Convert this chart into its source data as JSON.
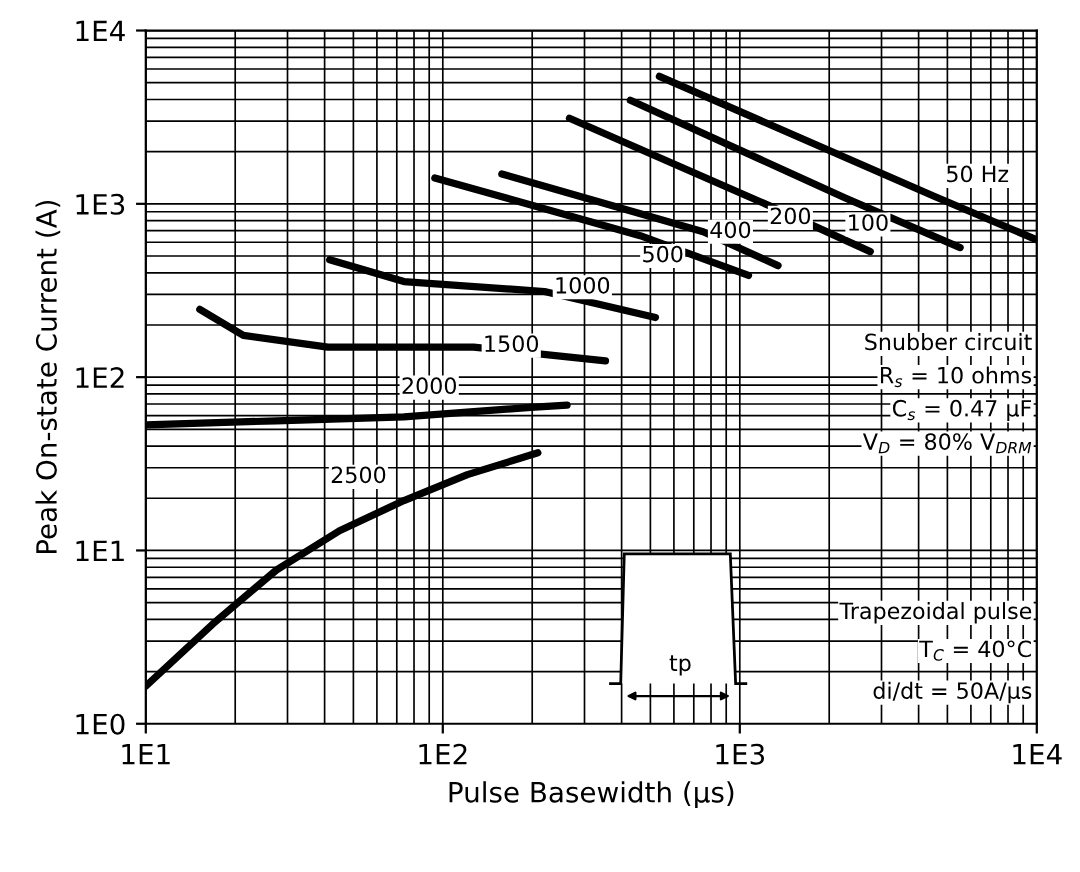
{
  "chart_data": {
    "type": "line",
    "xlabel": "Pulse Basewidth (µs)",
    "ylabel": "Peak On-state Current (A)",
    "log": "xy",
    "grid": true,
    "marker": "none",
    "line_style": "solid",
    "xlim": [
      10,
      10000
    ],
    "ylim": [
      1,
      10000
    ],
    "xticks": [
      {
        "value": 10,
        "label": "1E1"
      },
      {
        "value": 100,
        "label": "1E2"
      },
      {
        "value": 1000,
        "label": "1E3"
      },
      {
        "value": 10000,
        "label": "1E4"
      }
    ],
    "yticks": [
      {
        "value": 1,
        "label": "1E0"
      },
      {
        "value": 10,
        "label": "1E1"
      },
      {
        "value": 100,
        "label": "1E2"
      },
      {
        "value": 1000,
        "label": "1E3"
      },
      {
        "value": 10000,
        "label": "1E4"
      }
    ],
    "series": [
      {
        "color": "#000000",
        "x": [
          536,
          4490,
          10000
        ],
        "values": [
          5440,
          1110,
          620
        ]
      },
      {
        "color": "#000000",
        "x": [
          428,
          2265,
          5520
        ],
        "values": [
          3960,
          1080,
          559
        ]
      },
      {
        "color": "#000000",
        "x": [
          267,
          1306,
          2750
        ],
        "values": [
          3120,
          948,
          530
        ]
      },
      {
        "color": "#000000",
        "x": [
          158,
          753,
          1345
        ],
        "values": [
          1487,
          690,
          440
        ]
      },
      {
        "color": "#000000",
        "x": [
          94,
          462,
          1070
        ],
        "values": [
          1410,
          655,
          386
        ]
      },
      {
        "color": "#000000",
        "x": [
          41.6,
          74,
          220,
          520
        ],
        "values": [
          476,
          356,
          312,
          221
        ]
      },
      {
        "color": "#000000",
        "x": [
          15.2,
          21.3,
          41,
          127,
          353
        ],
        "values": [
          246,
          174,
          149,
          149,
          124
        ]
      },
      {
        "color": "#000000",
        "x": [
          10,
          27.5,
          74,
          198,
          262
        ],
        "values": [
          53,
          56,
          59,
          67,
          69
        ]
      },
      {
        "color": "#000000",
        "x": [
          10,
          16.8,
          27.5,
          44.9,
          74,
          121,
          209
        ],
        "values": [
          1.65,
          3.76,
          7.7,
          13,
          19.4,
          27.4,
          36.6
        ]
      }
    ],
    "annotations": [
      {
        "text": "50 Hz",
        "x": 6300,
        "y": 1450
      },
      {
        "text": "100",
        "x": 2700,
        "y": 760
      },
      {
        "text": "200",
        "x": 1480,
        "y": 830
      },
      {
        "text": "400",
        "x": 930,
        "y": 690
      },
      {
        "text": "500",
        "x": 550,
        "y": 500
      },
      {
        "text": "1000",
        "x": 295,
        "y": 330
      },
      {
        "text": "1500",
        "x": 170,
        "y": 152
      },
      {
        "text": "2000",
        "x": 90,
        "y": 87
      },
      {
        "text": "2500",
        "x": 52,
        "y": 26.6
      },
      "Snubber circuit",
      "R$_{s}$ = 10 ohms",
      "C$_{s}$ = 0.47 µF",
      "V$_{D}$ = 80% V$_{DRM}$",
      "Trapezoidal pulse",
      "T$_{C}$ = 40°C",
      "di/dt = 50A/µs",
      "tp"
    ]
  }
}
